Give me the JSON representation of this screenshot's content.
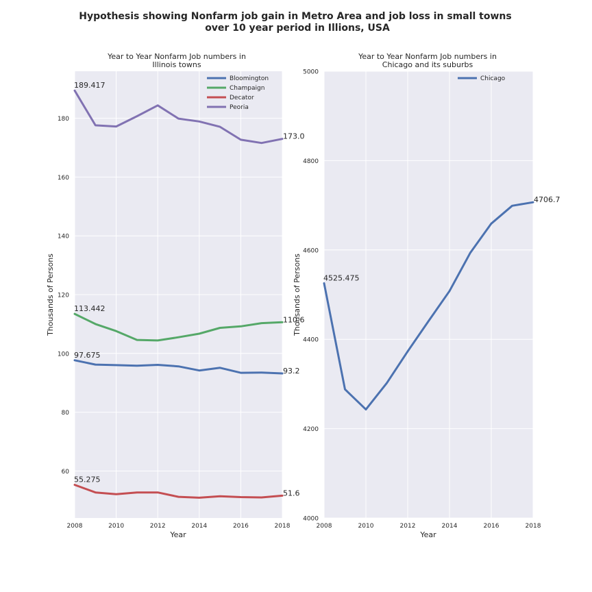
{
  "figure": {
    "suptitle_line1": "Hypothesis showing Nonfarm job gain in Metro Area and job loss in small towns",
    "suptitle_line2": "over 10 year period in Illions, USA"
  },
  "colors": {
    "plot_background": "#eaeaf2",
    "grid": "#ffffff",
    "text": "#262626",
    "blue": "#4c72b0",
    "green": "#55a868",
    "red": "#c44e52",
    "purple": "#8172b2"
  },
  "chart_data": [
    {
      "type": "line",
      "title_line1": "Year to Year Nonfarm Job numbers in",
      "title_line2": "Illinois towns",
      "xlabel": "Year",
      "ylabel": "Thousands of Persons",
      "xlim": [
        2008,
        2018
      ],
      "ylim": [
        44,
        196
      ],
      "xticks": [
        2008,
        2010,
        2012,
        2014,
        2016,
        2018
      ],
      "yticks": [
        60,
        80,
        100,
        120,
        140,
        160,
        180
      ],
      "grid": true,
      "legend_position": "top-right",
      "x": [
        2008,
        2009,
        2010,
        2011,
        2012,
        2013,
        2014,
        2015,
        2016,
        2017,
        2018
      ],
      "series": [
        {
          "name": "Bloomington",
          "color": "#4c72b0",
          "values": [
            97.675,
            96.2,
            96.0,
            95.8,
            96.1,
            95.6,
            94.2,
            95.1,
            93.4,
            93.5,
            93.2
          ],
          "start_label": "97.675",
          "end_label": "93.2"
        },
        {
          "name": "Champaign",
          "color": "#55a868",
          "values": [
            113.442,
            110.0,
            107.6,
            104.6,
            104.4,
            105.5,
            106.7,
            108.7,
            109.2,
            110.3,
            110.6
          ],
          "start_label": "113.442",
          "end_label": "110.6"
        },
        {
          "name": "Decator",
          "color": "#c44e52",
          "values": [
            55.275,
            52.7,
            52.1,
            52.7,
            52.7,
            51.2,
            50.9,
            51.4,
            51.1,
            51.0,
            51.6
          ],
          "start_label": "55.275",
          "end_label": "51.6"
        },
        {
          "name": "Peoria",
          "color": "#8172b2",
          "values": [
            189.417,
            177.6,
            177.2,
            180.7,
            184.4,
            179.9,
            178.9,
            177.1,
            172.7,
            171.6,
            173.0
          ],
          "start_label": "189.417",
          "end_label": "173.0"
        }
      ]
    },
    {
      "type": "line",
      "title_line1": "Year to Year Nonfarm Job numbers in",
      "title_line2": "Chicago and its suburbs",
      "xlabel": "Year",
      "ylabel": "Thousands of Persons",
      "xlim": [
        2008,
        2018
      ],
      "ylim": [
        4000,
        5000
      ],
      "xticks": [
        2008,
        2010,
        2012,
        2014,
        2016,
        2018
      ],
      "yticks": [
        4000,
        4200,
        4400,
        4600,
        4800,
        5000
      ],
      "grid": true,
      "legend_position": "top-right",
      "x": [
        2008,
        2009,
        2010,
        2011,
        2012,
        2013,
        2014,
        2015,
        2016,
        2017,
        2018
      ],
      "series": [
        {
          "name": "Chicago",
          "color": "#4c72b0",
          "values": [
            4525.475,
            4288,
            4243,
            4302,
            4373,
            4441,
            4508,
            4594,
            4659,
            4699,
            4706.7
          ],
          "start_label": "4525.475",
          "end_label": "4706.7"
        }
      ]
    }
  ]
}
